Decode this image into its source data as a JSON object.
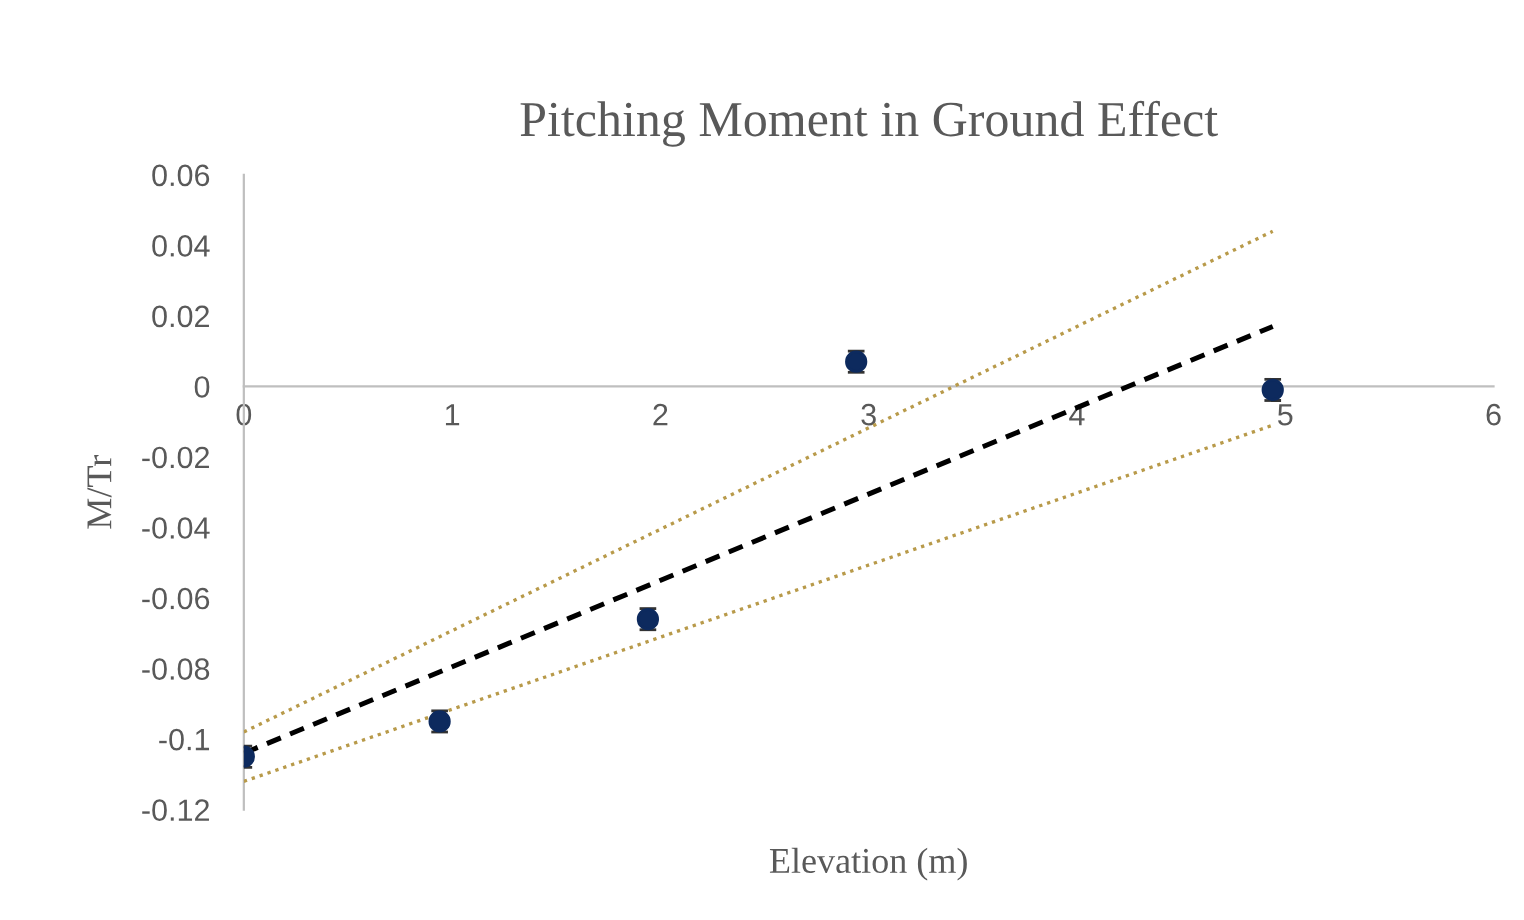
{
  "chart_data": {
    "type": "scatter",
    "title": "Pitching Moment in Ground Effect",
    "xlabel": "Elevation (m)",
    "ylabel": "M/Tr",
    "xlim": [
      0,
      6
    ],
    "xticks": [
      0,
      1,
      2,
      3,
      4,
      5,
      6
    ],
    "ylim": [
      -0.12,
      0.06
    ],
    "yticks": [
      -0.12,
      {
        "value": -0.1,
        "label": "-0.1"
      },
      -0.08,
      -0.06,
      -0.04,
      -0.02,
      0,
      0.02,
      0.04,
      0.06
    ],
    "grid": false,
    "legend": false,
    "marker": "circle",
    "series": [
      {
        "color": "#0d2a5e",
        "x": [
          0,
          0.94,
          1.94,
          2.94,
          4.94
        ],
        "values": [
          -0.105,
          -0.095,
          -0.066,
          0.007,
          -0.001
        ],
        "errors": [
          0.003,
          0.003,
          0.003,
          0.003,
          0.003
        ]
      },
      {
        "type": "line",
        "color": "#000000",
        "line_style": "dashed",
        "marker": "none",
        "x": [
          0,
          4.94
        ],
        "values": [
          -0.104,
          0.017
        ]
      },
      {
        "type": "line",
        "color": "#b89a4a",
        "line_style": "dotted",
        "marker": "none",
        "x": [
          0,
          4.94
        ],
        "values": [
          -0.098,
          0.044
        ]
      },
      {
        "type": "line",
        "color": "#b89a4a",
        "line_style": "dotted",
        "marker": "none",
        "x": [
          0,
          4.94
        ],
        "values": [
          -0.112,
          -0.011
        ]
      }
    ]
  }
}
